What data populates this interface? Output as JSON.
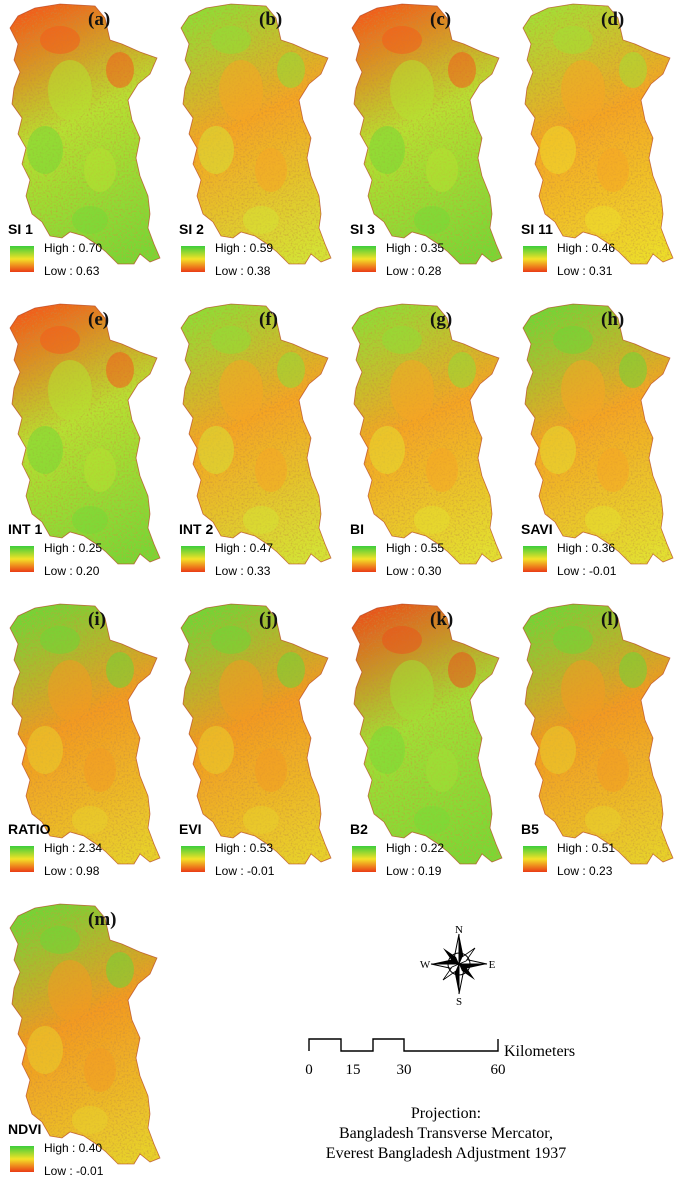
{
  "panels": [
    {
      "letter": "(a)",
      "index": "SI 1",
      "high": "High : 0.70",
      "low": "Low : 0.63",
      "ne": "#f25d1c",
      "center": "#b7e031",
      "s": "#78d736"
    },
    {
      "letter": "(b)",
      "index": "SI 2",
      "high": "High : 0.59",
      "low": "Low : 0.38",
      "ne": "#8fdd36",
      "center": "#f5a524",
      "s": "#d5e234"
    },
    {
      "letter": "(c)",
      "index": "SI 3",
      "high": "High : 0.35",
      "low": "Low : 0.28",
      "ne": "#f25d1c",
      "center": "#b7e031",
      "s": "#78d736"
    },
    {
      "letter": "(d)",
      "index": "SI 11",
      "high": "High : 0.46",
      "low": "Low : 0.31",
      "ne": "#a3df35",
      "center": "#f5a524",
      "s": "#eddc2c"
    },
    {
      "letter": "(e)",
      "index": "INT 1",
      "high": "High : 0.25",
      "low": "Low : 0.20",
      "ne": "#f25d1c",
      "center": "#b7e031",
      "s": "#78d736"
    },
    {
      "letter": "(f)",
      "index": "INT 2",
      "high": "High : 0.47",
      "low": "Low : 0.33",
      "ne": "#8fdd36",
      "center": "#f5a524",
      "s": "#d5e234"
    },
    {
      "letter": "(g)",
      "index": "BI",
      "high": "High : 0.55",
      "low": "Low : 0.30",
      "ne": "#8fdd36",
      "center": "#f5a524",
      "s": "#e3df30"
    },
    {
      "letter": "(h)",
      "index": "SAVI",
      "high": "High : 0.36",
      "low": "Low : -0.01",
      "ne": "#6fd637",
      "center": "#f5a524",
      "s": "#e3df30"
    },
    {
      "letter": "(i)",
      "index": "RATIO",
      "high": "High : 2.34",
      "low": "Low : 0.98",
      "ne": "#6fd637",
      "center": "#f39a22",
      "s": "#e8d02c"
    },
    {
      "letter": "(j)",
      "index": "EVI",
      "high": "High : 0.53",
      "low": "Low : -0.01",
      "ne": "#6fd637",
      "center": "#f39a22",
      "s": "#e8d02c"
    },
    {
      "letter": "(k)",
      "index": "B2",
      "high": "High : 0.22",
      "low": "Low : 0.19",
      "ne": "#e9541c",
      "center": "#a2df34",
      "s": "#7ad836"
    },
    {
      "letter": "(l)",
      "index": "B5",
      "high": "High : 0.51",
      "low": "Low : 0.23",
      "ne": "#6fd637",
      "center": "#f39a22",
      "s": "#e8d02c"
    },
    {
      "letter": "(m)",
      "index": "NDVI",
      "high": "High : 0.40",
      "low": "Low : -0.01",
      "ne": "#6fd637",
      "center": "#f39a22",
      "s": "#e8d02c"
    }
  ],
  "north_arrow": {
    "n": "N",
    "s": "S",
    "e": "E",
    "w": "W"
  },
  "scale_bar": {
    "unit": "Kilometers",
    "ticks": [
      "0",
      "15",
      "30",
      "60"
    ]
  },
  "projection": {
    "title": "Projection:",
    "line1": "Bangladesh Transverse Mercator,",
    "line2": "Everest Bangladesh Adjustment 1937"
  },
  "colors": {
    "high": "#3ccd3c",
    "mid": "#f4e227",
    "low": "#ea3b15",
    "outline": "#b43c18"
  }
}
